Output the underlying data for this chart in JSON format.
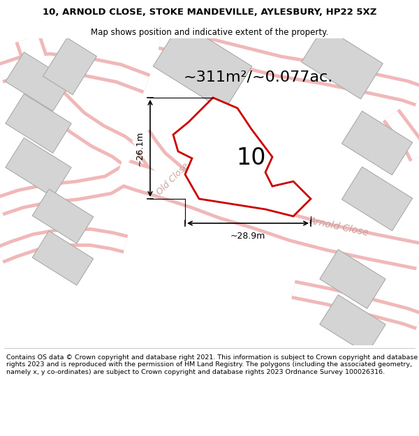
{
  "title_line1": "10, ARNOLD CLOSE, STOKE MANDEVILLE, AYLESBURY, HP22 5XZ",
  "title_line2": "Map shows position and indicative extent of the property.",
  "area_text": "~311m²/~0.077ac.",
  "plot_number": "10",
  "dim_vertical": "~26.1m",
  "dim_horizontal": "~28.9m",
  "street_label1": "Old Close",
  "street_label2": "Arnold Close",
  "footer_text": "Contains OS data © Crown copyright and database right 2021. This information is subject to Crown copyright and database rights 2023 and is reproduced with the permission of HM Land Registry. The polygons (including the associated geometry, namely x, y co-ordinates) are subject to Crown copyright and database rights 2023 Ordnance Survey 100026316.",
  "bg_color": "#ffffff",
  "plot_color": "#cc0000",
  "road_stroke": "#f0b8b8",
  "road_fill": "#ffffff",
  "building_fill": "#d4d4d4",
  "building_edge": "#aaaaaa"
}
